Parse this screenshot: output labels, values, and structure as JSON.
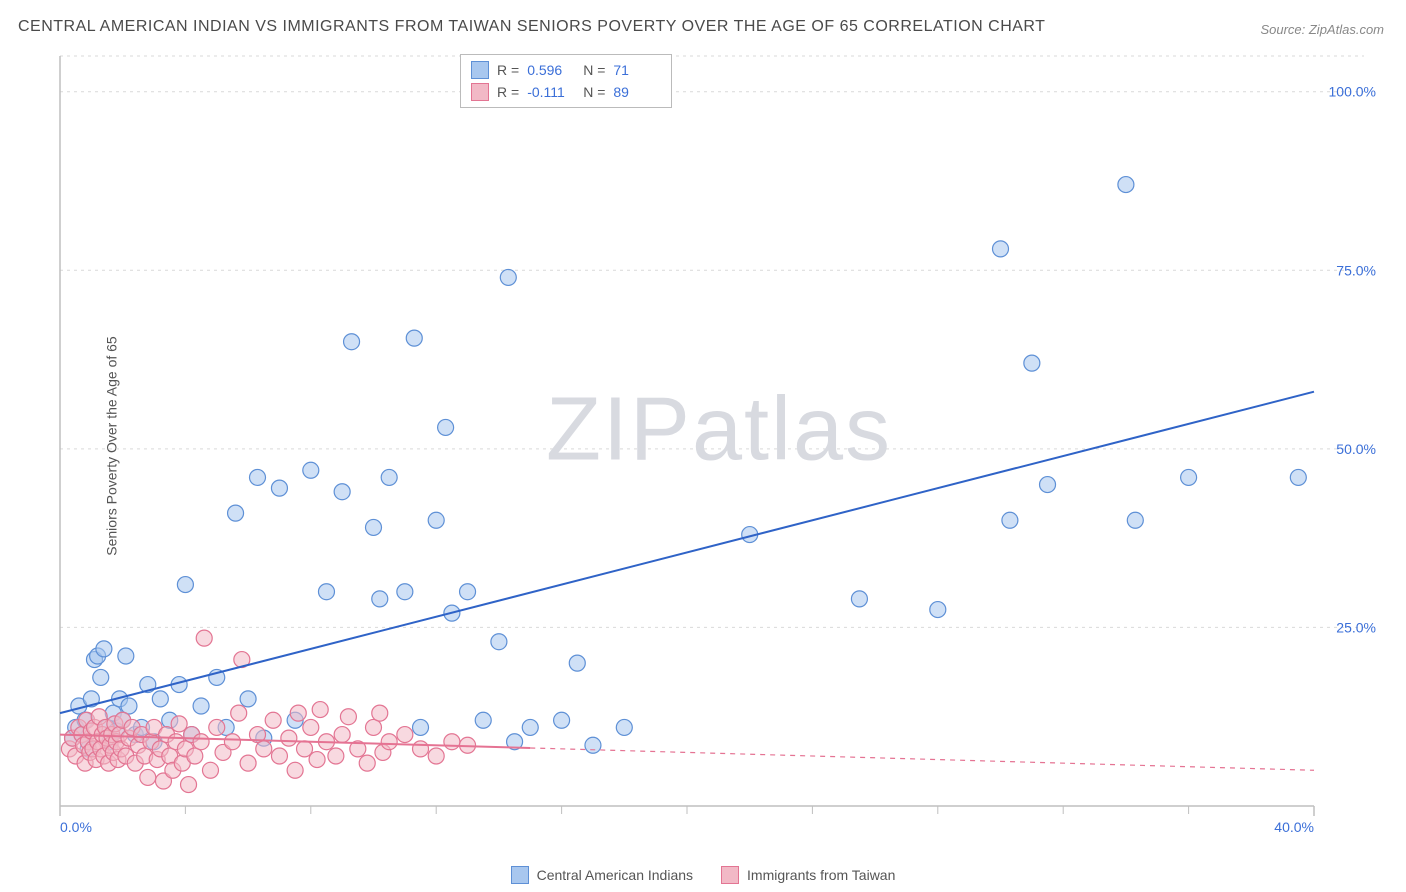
{
  "title": "CENTRAL AMERICAN INDIAN VS IMMIGRANTS FROM TAIWAN SENIORS POVERTY OVER THE AGE OF 65 CORRELATION CHART",
  "source": "Source: ZipAtlas.com",
  "watermark": "ZIPatlas",
  "y_axis_label": "Seniors Poverty Over the Age of 65",
  "chart": {
    "type": "scatter",
    "xlim": [
      0,
      40
    ],
    "ylim": [
      0,
      105
    ],
    "x_ticks": [
      0,
      40
    ],
    "x_tick_labels": [
      "0.0%",
      "40.0%"
    ],
    "x_minor_ticks": [
      4,
      8,
      12,
      16,
      20,
      24,
      28,
      32,
      36
    ],
    "y_ticks": [
      25,
      50,
      75,
      100
    ],
    "y_tick_labels": [
      "25.0%",
      "50.0%",
      "75.0%",
      "100.0%"
    ],
    "grid_color": "#d9d9d9",
    "axis_color": "#bfbfbf",
    "background": "#ffffff",
    "marker_radius": 8,
    "marker_opacity": 0.55,
    "marker_stroke_width": 1.2,
    "line_width": 2,
    "series": [
      {
        "name": "Central American Indians",
        "fill": "#a8c7ef",
        "stroke": "#5e90d6",
        "line_color": "#2f63c7",
        "line_dash_after_x": null,
        "line_start": [
          0,
          13
        ],
        "line_end": [
          40,
          58
        ],
        "points": [
          [
            0.4,
            9.5
          ],
          [
            0.5,
            11
          ],
          [
            0.6,
            14
          ],
          [
            0.7,
            10
          ],
          [
            0.8,
            12
          ],
          [
            0.9,
            8
          ],
          [
            1.0,
            15
          ],
          [
            1.1,
            20.5
          ],
          [
            1.2,
            21
          ],
          [
            1.3,
            18
          ],
          [
            1.4,
            22
          ],
          [
            1.5,
            11
          ],
          [
            1.6,
            9
          ],
          [
            1.7,
            13
          ],
          [
            1.8,
            10.5
          ],
          [
            1.9,
            15
          ],
          [
            2.0,
            12
          ],
          [
            2.1,
            21
          ],
          [
            2.2,
            14
          ],
          [
            2.4,
            10
          ],
          [
            2.6,
            11
          ],
          [
            2.8,
            17
          ],
          [
            3.0,
            9
          ],
          [
            3.2,
            15
          ],
          [
            3.5,
            12
          ],
          [
            3.8,
            17
          ],
          [
            4.0,
            31
          ],
          [
            4.2,
            10
          ],
          [
            4.5,
            14
          ],
          [
            5.0,
            18
          ],
          [
            5.3,
            11
          ],
          [
            5.6,
            41
          ],
          [
            6.0,
            15
          ],
          [
            6.3,
            46
          ],
          [
            6.5,
            9.5
          ],
          [
            7.0,
            44.5
          ],
          [
            7.5,
            12
          ],
          [
            8.0,
            47
          ],
          [
            8.5,
            30
          ],
          [
            9.0,
            44
          ],
          [
            9.3,
            65
          ],
          [
            10.0,
            39
          ],
          [
            10.2,
            29
          ],
          [
            10.5,
            46
          ],
          [
            11.0,
            30
          ],
          [
            11.3,
            65.5
          ],
          [
            11.5,
            11
          ],
          [
            12.0,
            40
          ],
          [
            12.3,
            53
          ],
          [
            12.5,
            27
          ],
          [
            13.0,
            30
          ],
          [
            13.5,
            12
          ],
          [
            14.0,
            23
          ],
          [
            14.3,
            74
          ],
          [
            14.5,
            9
          ],
          [
            15.0,
            11
          ],
          [
            16.0,
            12
          ],
          [
            16.5,
            20
          ],
          [
            17.0,
            8.5
          ],
          [
            18.0,
            11
          ],
          [
            22.0,
            38
          ],
          [
            25.5,
            29
          ],
          [
            28.0,
            27.5
          ],
          [
            30.0,
            78
          ],
          [
            30.3,
            40
          ],
          [
            31.0,
            62
          ],
          [
            31.5,
            45
          ],
          [
            34.0,
            87
          ],
          [
            34.3,
            40
          ],
          [
            36.0,
            46
          ],
          [
            39.5,
            46
          ]
        ]
      },
      {
        "name": "Immigrants from Taiwan",
        "fill": "#f2b9c6",
        "stroke": "#e37593",
        "line_color": "#e57393",
        "line_dash_after_x": 15,
        "line_start": [
          0,
          10
        ],
        "line_end": [
          40,
          5
        ],
        "points": [
          [
            0.3,
            8
          ],
          [
            0.4,
            9.5
          ],
          [
            0.5,
            7
          ],
          [
            0.6,
            11
          ],
          [
            0.7,
            10
          ],
          [
            0.75,
            8.5
          ],
          [
            0.8,
            6
          ],
          [
            0.85,
            12
          ],
          [
            0.9,
            9
          ],
          [
            0.95,
            7.5
          ],
          [
            1.0,
            10.5
          ],
          [
            1.05,
            8
          ],
          [
            1.1,
            11
          ],
          [
            1.15,
            6.5
          ],
          [
            1.2,
            9
          ],
          [
            1.25,
            12.5
          ],
          [
            1.3,
            8
          ],
          [
            1.35,
            10
          ],
          [
            1.4,
            7
          ],
          [
            1.45,
            11
          ],
          [
            1.5,
            9.5
          ],
          [
            1.55,
            6
          ],
          [
            1.6,
            8.5
          ],
          [
            1.65,
            10
          ],
          [
            1.7,
            7.5
          ],
          [
            1.75,
            11.5
          ],
          [
            1.8,
            9
          ],
          [
            1.85,
            6.5
          ],
          [
            1.9,
            10
          ],
          [
            1.95,
            8
          ],
          [
            2.0,
            12
          ],
          [
            2.1,
            7
          ],
          [
            2.2,
            9.5
          ],
          [
            2.3,
            11
          ],
          [
            2.4,
            6
          ],
          [
            2.5,
            8.5
          ],
          [
            2.6,
            10
          ],
          [
            2.7,
            7
          ],
          [
            2.8,
            4
          ],
          [
            2.9,
            9
          ],
          [
            3.0,
            11
          ],
          [
            3.1,
            6.5
          ],
          [
            3.2,
            8
          ],
          [
            3.3,
            3.5
          ],
          [
            3.4,
            10
          ],
          [
            3.5,
            7
          ],
          [
            3.6,
            5
          ],
          [
            3.7,
            9
          ],
          [
            3.8,
            11.5
          ],
          [
            3.9,
            6
          ],
          [
            4.0,
            8
          ],
          [
            4.1,
            3
          ],
          [
            4.2,
            10
          ],
          [
            4.3,
            7
          ],
          [
            4.5,
            9
          ],
          [
            4.6,
            23.5
          ],
          [
            4.8,
            5
          ],
          [
            5.0,
            11
          ],
          [
            5.2,
            7.5
          ],
          [
            5.5,
            9
          ],
          [
            5.7,
            13
          ],
          [
            5.8,
            20.5
          ],
          [
            6.0,
            6
          ],
          [
            6.3,
            10
          ],
          [
            6.5,
            8
          ],
          [
            6.8,
            12
          ],
          [
            7.0,
            7
          ],
          [
            7.3,
            9.5
          ],
          [
            7.5,
            5
          ],
          [
            7.6,
            13
          ],
          [
            7.8,
            8
          ],
          [
            8.0,
            11
          ],
          [
            8.2,
            6.5
          ],
          [
            8.3,
            13.5
          ],
          [
            8.5,
            9
          ],
          [
            8.8,
            7
          ],
          [
            9.0,
            10
          ],
          [
            9.2,
            12.5
          ],
          [
            9.5,
            8
          ],
          [
            9.8,
            6
          ],
          [
            10.0,
            11
          ],
          [
            10.2,
            13
          ],
          [
            10.3,
            7.5
          ],
          [
            10.5,
            9
          ],
          [
            11.0,
            10
          ],
          [
            11.5,
            8
          ],
          [
            12.0,
            7
          ],
          [
            12.5,
            9
          ],
          [
            13.0,
            8.5
          ]
        ]
      }
    ]
  },
  "stats": [
    {
      "r_label": "R =",
      "r": "0.596",
      "n_label": "N =",
      "n": "71",
      "fill": "#a8c7ef",
      "stroke": "#5e90d6"
    },
    {
      "r_label": "R =",
      "r": "-0.111",
      "n_label": "N =",
      "n": "89",
      "fill": "#f2b9c6",
      "stroke": "#e37593"
    }
  ],
  "legend": [
    {
      "label": "Central American Indians",
      "fill": "#a8c7ef",
      "stroke": "#5e90d6"
    },
    {
      "label": "Immigrants from Taiwan",
      "fill": "#f2b9c6",
      "stroke": "#e37593"
    }
  ]
}
